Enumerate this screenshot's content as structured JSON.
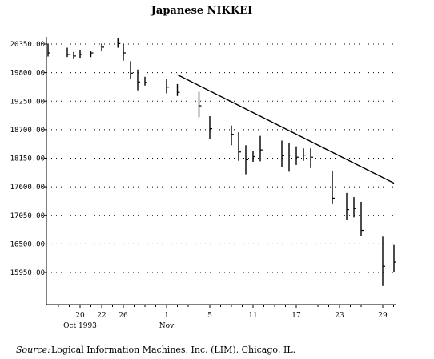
{
  "chart_data": {
    "type": "ohlc",
    "title": "Japanese NIKKEI",
    "xlabel": "",
    "ylabel": "",
    "ylim": [
      15500,
      20700
    ],
    "y_ticks": [
      "20350.00",
      "19800.00",
      "19250.00",
      "18700.00",
      "18150.00",
      "17600.00",
      "17050.00",
      "16500.00",
      "15950.00"
    ],
    "y_tick_values": [
      20350,
      19800,
      19250,
      18700,
      18150,
      17600,
      17050,
      16500,
      15950
    ],
    "grid": "horizontal dotted",
    "x_ticks": [
      {
        "label": "20",
        "date": "1993-10-20"
      },
      {
        "label": "22",
        "date": "1993-10-22"
      },
      {
        "label": "26",
        "date": "1993-10-26"
      },
      {
        "label": "1",
        "date": "1993-11-01"
      },
      {
        "label": "5",
        "date": "1993-11-05"
      },
      {
        "label": "11",
        "date": "1993-11-11"
      },
      {
        "label": "17",
        "date": "1993-11-17"
      },
      {
        "label": "23",
        "date": "1993-11-23"
      },
      {
        "label": "29",
        "date": "1993-11-29"
      }
    ],
    "x_sublabels": [
      {
        "label": "Oct 1993",
        "under": "20"
      },
      {
        "label": "Nov",
        "under": "1"
      }
    ],
    "bars": [
      {
        "date": "1993-10-15",
        "high": 20360,
        "low": 20110,
        "close": 20180
      },
      {
        "date": "1993-10-18",
        "high": 20280,
        "low": 20100,
        "close": 20150
      },
      {
        "date": "1993-10-19",
        "high": 20200,
        "low": 20060,
        "close": 20120
      },
      {
        "date": "1993-10-20",
        "high": 20240,
        "low": 20070,
        "close": 20150
      },
      {
        "date": "1993-10-21",
        "high": 20210,
        "low": 20100,
        "close": 20180
      },
      {
        "date": "1993-10-22",
        "high": 20360,
        "low": 20210,
        "close": 20290
      },
      {
        "date": "1993-10-25",
        "high": 20460,
        "low": 20280,
        "close": 20360
      },
      {
        "date": "1993-10-26",
        "high": 20350,
        "low": 20030,
        "close": 20180
      },
      {
        "date": "1993-10-27",
        "high": 20020,
        "low": 19680,
        "close": 19790
      },
      {
        "date": "1993-10-28",
        "high": 19860,
        "low": 19460,
        "close": 19620
      },
      {
        "date": "1993-10-29",
        "high": 19720,
        "low": 19550,
        "close": 19610
      },
      {
        "date": "1993-11-01",
        "high": 19670,
        "low": 19400,
        "close": 19520
      },
      {
        "date": "1993-11-02",
        "high": 19580,
        "low": 19350,
        "close": 19420
      },
      {
        "date": "1993-11-04",
        "high": 19430,
        "low": 18940,
        "close": 19160
      },
      {
        "date": "1993-11-05",
        "high": 18960,
        "low": 18520,
        "close": 18720
      },
      {
        "date": "1993-11-08",
        "high": 18780,
        "low": 18400,
        "close": 18610
      },
      {
        "date": "1993-11-09",
        "high": 18650,
        "low": 18100,
        "close": 18270
      },
      {
        "date": "1993-11-10",
        "high": 18400,
        "low": 17840,
        "close": 18120
      },
      {
        "date": "1993-11-11",
        "high": 18290,
        "low": 18080,
        "close": 18180
      },
      {
        "date": "1993-11-12",
        "high": 18580,
        "low": 18090,
        "close": 18310
      },
      {
        "date": "1993-11-15",
        "high": 18490,
        "low": 17980,
        "close": 18200
      },
      {
        "date": "1993-11-16",
        "high": 18450,
        "low": 17890,
        "close": 18210
      },
      {
        "date": "1993-11-17",
        "high": 18380,
        "low": 18020,
        "close": 18170
      },
      {
        "date": "1993-11-18",
        "high": 18340,
        "low": 18100,
        "close": 18210
      },
      {
        "date": "1993-11-19",
        "high": 18340,
        "low": 17960,
        "close": 18170
      },
      {
        "date": "1993-11-22",
        "high": 17900,
        "low": 17280,
        "close": 17380
      },
      {
        "date": "1993-11-24",
        "high": 17480,
        "low": 16960,
        "close": 17160
      },
      {
        "date": "1993-11-25",
        "high": 17400,
        "low": 17010,
        "close": 17180
      },
      {
        "date": "1993-11-26",
        "high": 17310,
        "low": 16650,
        "close": 16760
      },
      {
        "date": "1993-11-29",
        "high": 16640,
        "low": 15690,
        "close": 16070
      },
      {
        "date": "1993-11-30",
        "high": 16480,
        "low": 15950,
        "close": 16150
      }
    ],
    "trendline": {
      "start": {
        "date": "1993-11-02",
        "value": 19760
      },
      "end": {
        "date": "1993-11-30",
        "value": 17670
      }
    },
    "source_prefix": "Source:",
    "source_text": "Logical Information Machines, Inc. (LIM), Chicago, IL."
  }
}
